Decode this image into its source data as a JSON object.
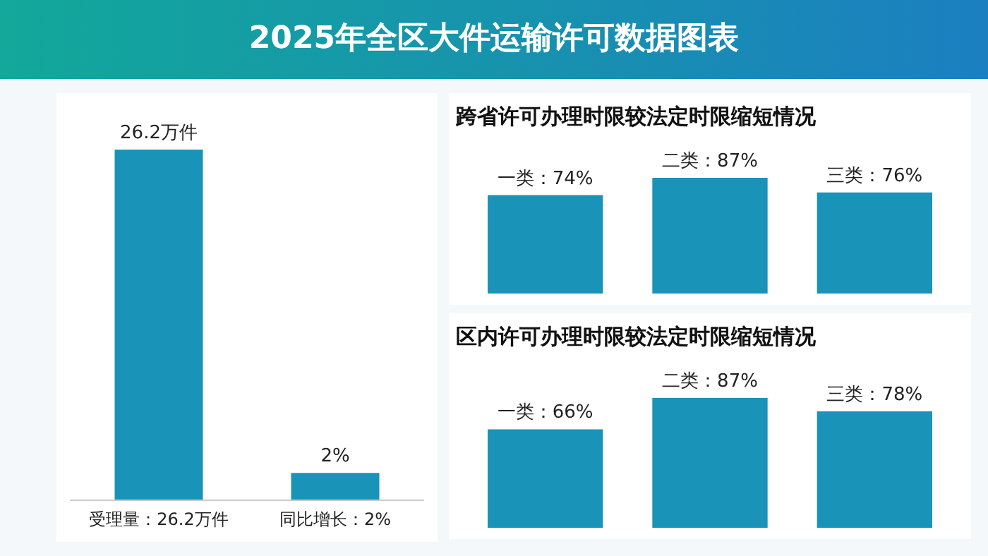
{
  "chart_data": [
    {
      "type": "bar",
      "title": "2025年全区大件运输许可数据图表",
      "categories": [
        "受理量：26.2万件",
        "同比增长：2%"
      ],
      "values": [
        26.2,
        2
      ],
      "value_labels": [
        "26.2万件",
        "2%"
      ],
      "color": "#1a93b8",
      "tick_labels": "x"
    },
    {
      "type": "bar",
      "title": "跨省许可办理时限较法定时限缩短情况",
      "categories": [
        null,
        null,
        null
      ],
      "values": [
        74,
        87,
        76
      ],
      "value_labels": [
        "一类：74%",
        "二类：87%",
        "三类：76%"
      ],
      "color": "#1a93b8",
      "tick_labels": false
    },
    {
      "type": "bar",
      "title": "区内许可办理时限较法定时限缩短情况",
      "categories": [
        null,
        null,
        null
      ],
      "values": [
        66,
        87,
        78
      ],
      "value_labels": [
        "一类：66%",
        "二类：87%",
        "三类：78%"
      ],
      "color": "#1a93b8",
      "tick_labels": false
    }
  ]
}
